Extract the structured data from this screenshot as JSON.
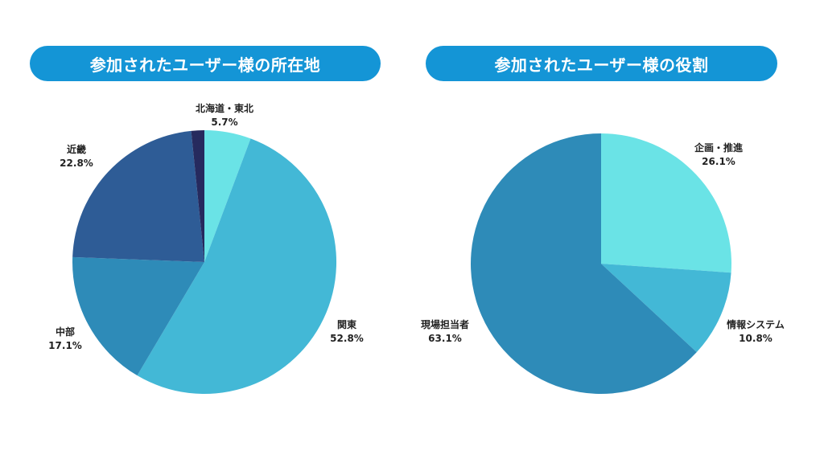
{
  "chart_data": [
    {
      "type": "pie",
      "title": "参加されたユーザー様の所在地",
      "colors": [
        "#6ae3e6",
        "#43b8d6",
        "#2e8bb8",
        "#2e5c96",
        "#262a5e"
      ],
      "slices": [
        {
          "label": "北海道・東北",
          "value": 5.7,
          "display": "5.7%"
        },
        {
          "label": "関東",
          "value": 52.8,
          "display": "52.8%"
        },
        {
          "label": "中部",
          "value": 17.1,
          "display": "17.1%"
        },
        {
          "label": "近畿",
          "value": 22.8,
          "display": "22.8%"
        },
        {
          "label": "",
          "value": 1.6,
          "display": ""
        }
      ]
    },
    {
      "type": "pie",
      "title": "参加されたユーザー様の役割",
      "colors": [
        "#6ae3e6",
        "#43b8d6",
        "#2e8bb8"
      ],
      "slices": [
        {
          "label": "企画・推進",
          "value": 26.1,
          "display": "26.1%"
        },
        {
          "label": "情報システム",
          "value": 10.8,
          "display": "10.8%"
        },
        {
          "label": "現場担当者",
          "value": 63.1,
          "display": "63.1%"
        }
      ]
    }
  ]
}
